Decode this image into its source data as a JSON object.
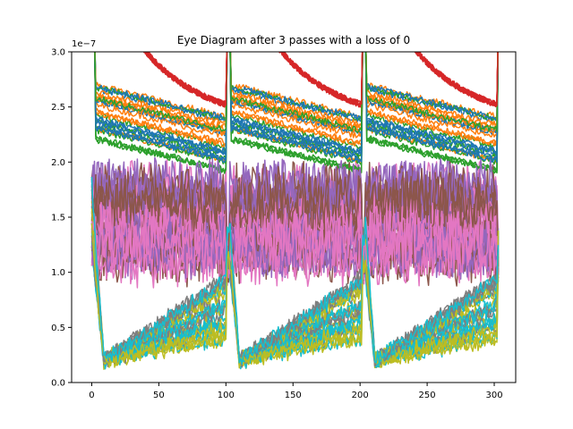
{
  "chart_data": {
    "type": "line",
    "title": "Eye Diagram after 3 passes with a loss of 0",
    "xlabel": "",
    "ylabel": "",
    "xlim": [
      -15,
      316
    ],
    "ylim": [
      0,
      3e-07
    ],
    "x_ticks": [
      0,
      50,
      100,
      150,
      200,
      250,
      300
    ],
    "x_tick_labels": [
      "0",
      "50",
      "100",
      "150",
      "200",
      "250",
      "300"
    ],
    "y_ticks": [
      0,
      5e-08,
      1e-07,
      1.5e-07,
      2e-07,
      2.5e-07,
      3e-07
    ],
    "y_tick_labels": [
      "0.0",
      "0.5",
      "1.0",
      "1.5",
      "2.0",
      "2.5",
      "3.0"
    ],
    "y_offset_label": "1e−7",
    "grid": false,
    "legend": "none",
    "x_range": [
      0,
      303
    ],
    "series_count": 90,
    "bit_period": 101,
    "levels": {
      "upper_band": [
        1.95e-07,
        2.5e-07
      ],
      "mid_band": [
        1.1e-07,
        1.8e-07
      ],
      "lower_start": 2e-08,
      "lower_end_max": 1e-07,
      "overshoot": 3e-07
    },
    "colors": [
      "#1f77b4",
      "#ff7f0e",
      "#2ca02c",
      "#d62728",
      "#9467bd",
      "#8c564b",
      "#e377c2",
      "#7f7f7f",
      "#bcbd22",
      "#17becf"
    ]
  }
}
